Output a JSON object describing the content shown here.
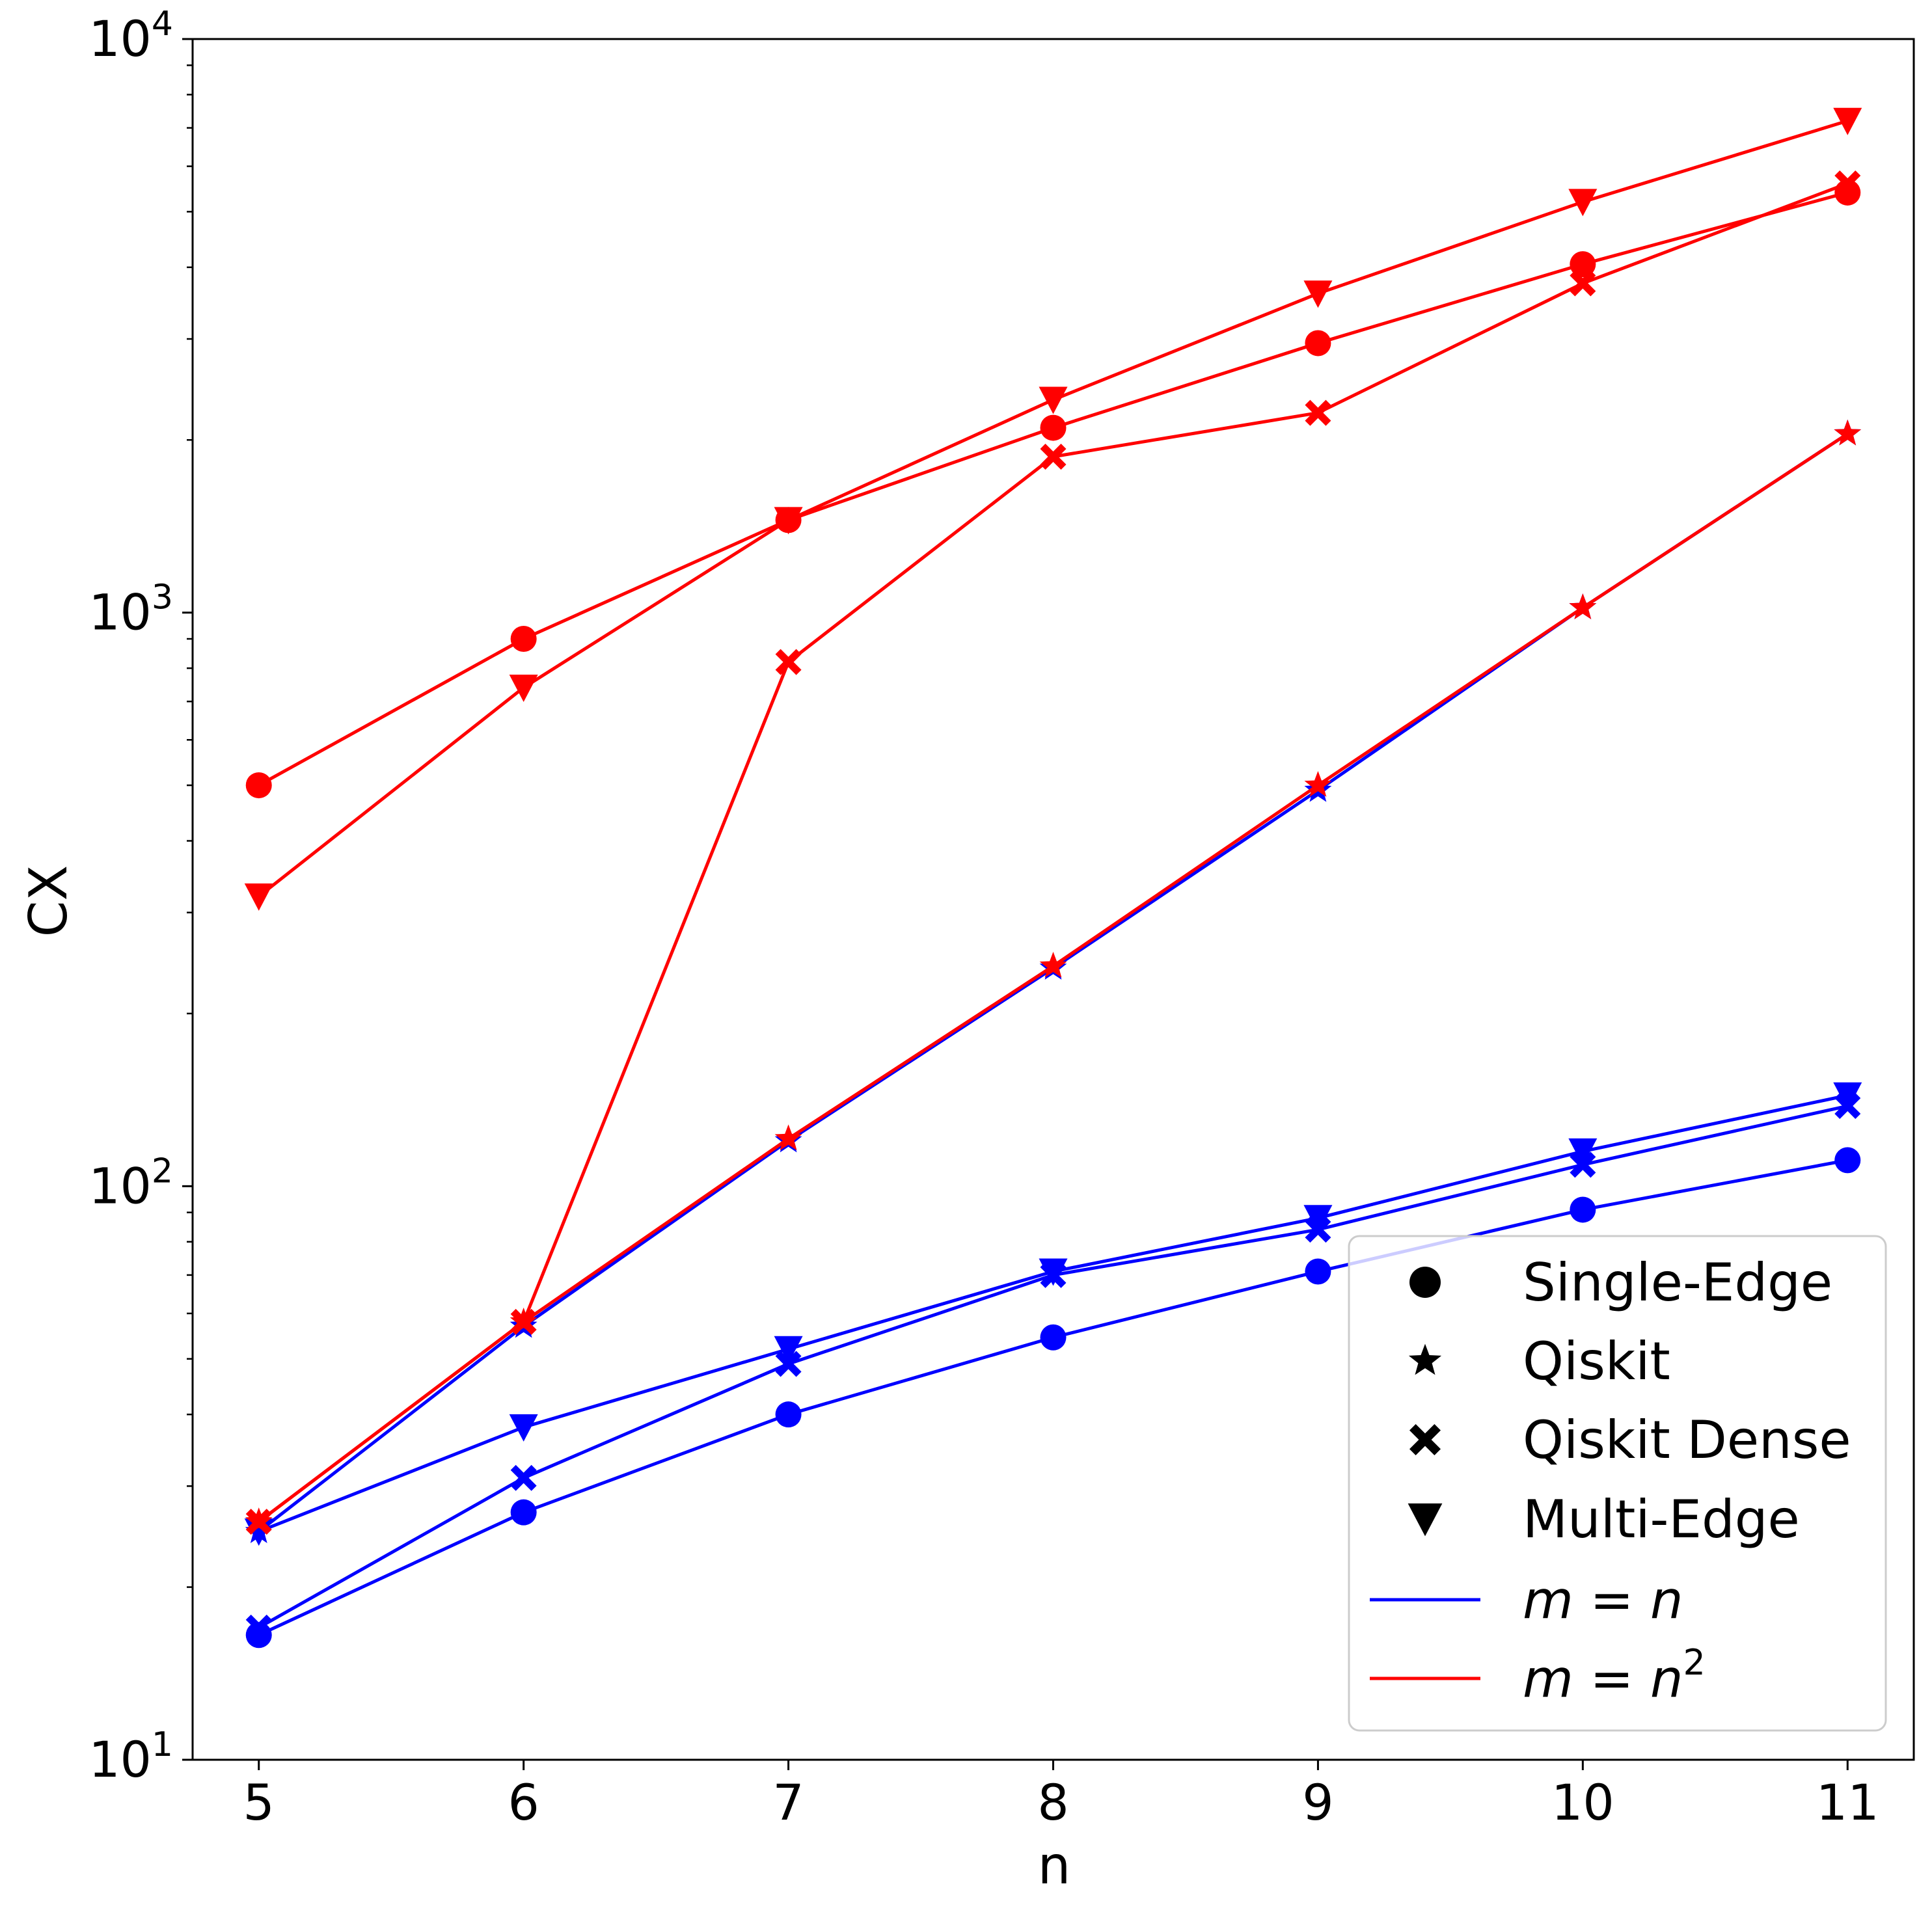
{
  "chart_data": {
    "type": "line",
    "title": "",
    "xlabel": "n",
    "ylabel": "CX",
    "yscale": "log",
    "xlim": [
      4.75,
      11.25
    ],
    "ylim": [
      10,
      10000
    ],
    "x": [
      5,
      6,
      7,
      8,
      9,
      10,
      11
    ],
    "x_tick_labels": [
      "5",
      "6",
      "7",
      "8",
      "9",
      "10",
      "11"
    ],
    "y_ticks": [
      {
        "value": 10,
        "base": "10",
        "exp": "1"
      },
      {
        "value": 100,
        "base": "10",
        "exp": "2"
      },
      {
        "value": 1000,
        "base": "10",
        "exp": "3"
      },
      {
        "value": 10000,
        "base": "10",
        "exp": "4"
      }
    ],
    "grid": false,
    "legend_position": "bottom-right",
    "legend": {
      "markers": [
        {
          "marker": "circle",
          "label": "Single-Edge"
        },
        {
          "marker": "star",
          "label": "Qiskit"
        },
        {
          "marker": "x",
          "label": "Qiskit Dense"
        },
        {
          "marker": "triangle-down",
          "label": "Multi-Edge"
        }
      ],
      "lines": [
        {
          "color": "#0000ff",
          "lhs": "m",
          "eq": " = ",
          "rhs": "n",
          "sup": ""
        },
        {
          "color": "#ff0000",
          "lhs": "m",
          "eq": " = ",
          "rhs": "n",
          "sup": "2"
        }
      ]
    },
    "series": [
      {
        "method": "Qiskit",
        "case": "m = n",
        "marker": "star",
        "color": "#0000ff",
        "values": [
          25,
          57,
          120,
          240,
          490,
          1020,
          2050
        ]
      },
      {
        "method": "Multi-Edge",
        "case": "m = n",
        "marker": "triangle-down",
        "color": "#0000ff",
        "values": [
          25,
          38,
          52,
          71,
          88,
          115,
          144
        ]
      },
      {
        "method": "Qiskit Dense",
        "case": "m = n",
        "marker": "x",
        "color": "#0000ff",
        "values": [
          17,
          31,
          49,
          70,
          84,
          109,
          138
        ]
      },
      {
        "method": "Single-Edge",
        "case": "m = n",
        "marker": "circle",
        "color": "#0000ff",
        "values": [
          16.5,
          27,
          40,
          54.5,
          71,
          91,
          111
        ]
      },
      {
        "method": "Single-Edge",
        "case": "m = n^2",
        "marker": "circle",
        "color": "#ff0000",
        "values": [
          500,
          900,
          1450,
          2100,
          2950,
          4050,
          5400
        ]
      },
      {
        "method": "Multi-Edge",
        "case": "m = n^2",
        "marker": "triangle-down",
        "color": "#ff0000",
        "values": [
          320,
          740,
          1450,
          2350,
          3600,
          5200,
          7200
        ]
      },
      {
        "method": "Qiskit Dense",
        "case": "m = n^2",
        "marker": "x",
        "color": "#ff0000",
        "values": [
          26,
          58,
          820,
          1870,
          2230,
          3750,
          5600
        ]
      },
      {
        "method": "Qiskit",
        "case": "m = n^2",
        "marker": "star",
        "color": "#ff0000",
        "values": [
          26,
          58,
          121,
          242,
          500,
          1020,
          2050
        ]
      }
    ]
  }
}
